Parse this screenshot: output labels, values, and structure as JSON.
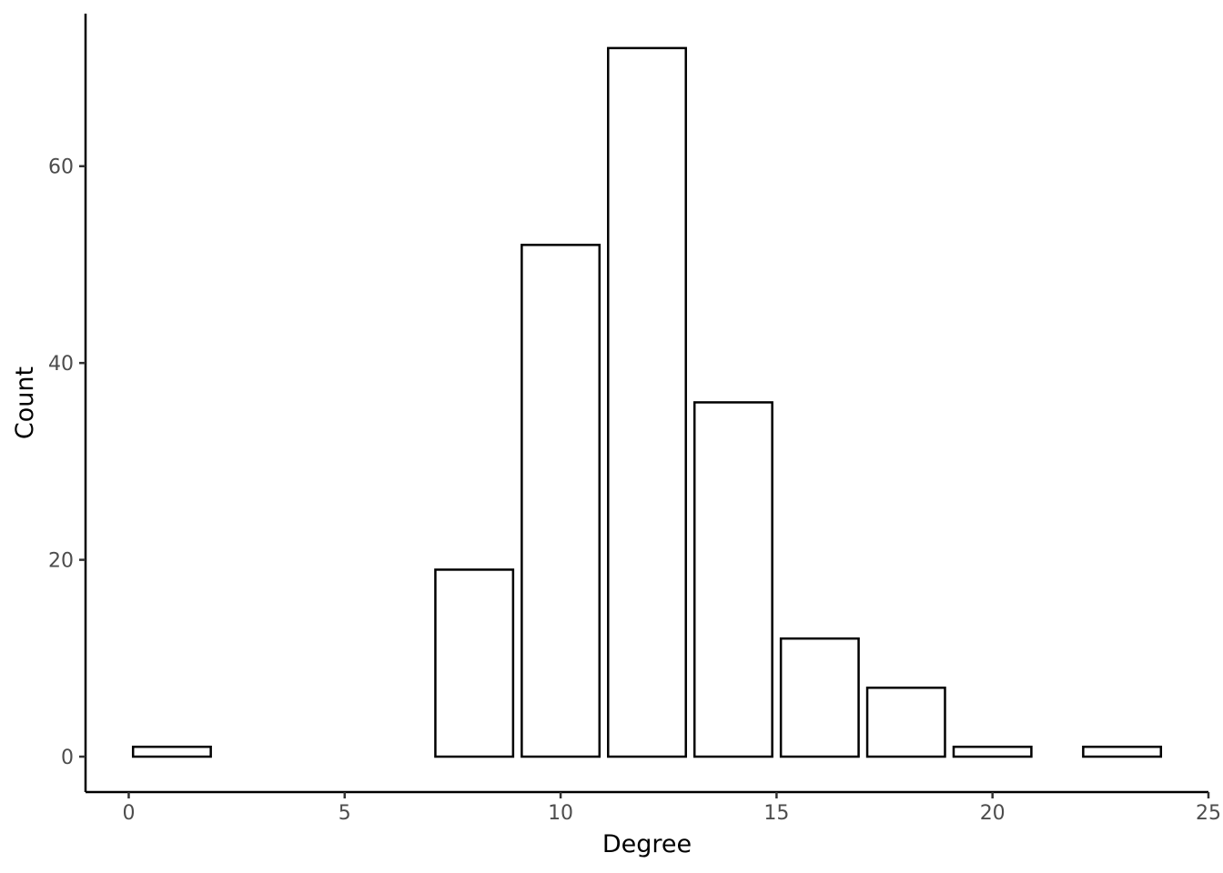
{
  "chart_data": {
    "type": "bar",
    "title": "",
    "xlabel": "Degree",
    "ylabel": "Count",
    "xlim": [
      -1,
      25
    ],
    "ylim": [
      -3.6,
      75.5
    ],
    "x_ticks": [
      0,
      5,
      10,
      15,
      20,
      25
    ],
    "y_ticks": [
      0,
      20,
      40,
      60
    ],
    "grid": false,
    "legend": "none",
    "bar_fill": "#ffffff",
    "bar_stroke": "#000000",
    "bins": [
      {
        "x0": 0.1,
        "x1": 1.9,
        "count": 1
      },
      {
        "x0": 7.1,
        "x1": 8.9,
        "count": 19
      },
      {
        "x0": 9.1,
        "x1": 10.9,
        "count": 52
      },
      {
        "x0": 11.1,
        "x1": 12.9,
        "count": 72
      },
      {
        "x0": 13.1,
        "x1": 14.9,
        "count": 36
      },
      {
        "x0": 15.1,
        "x1": 16.9,
        "count": 12
      },
      {
        "x0": 17.1,
        "x1": 18.9,
        "count": 7
      },
      {
        "x0": 19.1,
        "x1": 20.9,
        "count": 1
      },
      {
        "x0": 22.1,
        "x1": 23.9,
        "count": 1
      }
    ]
  }
}
